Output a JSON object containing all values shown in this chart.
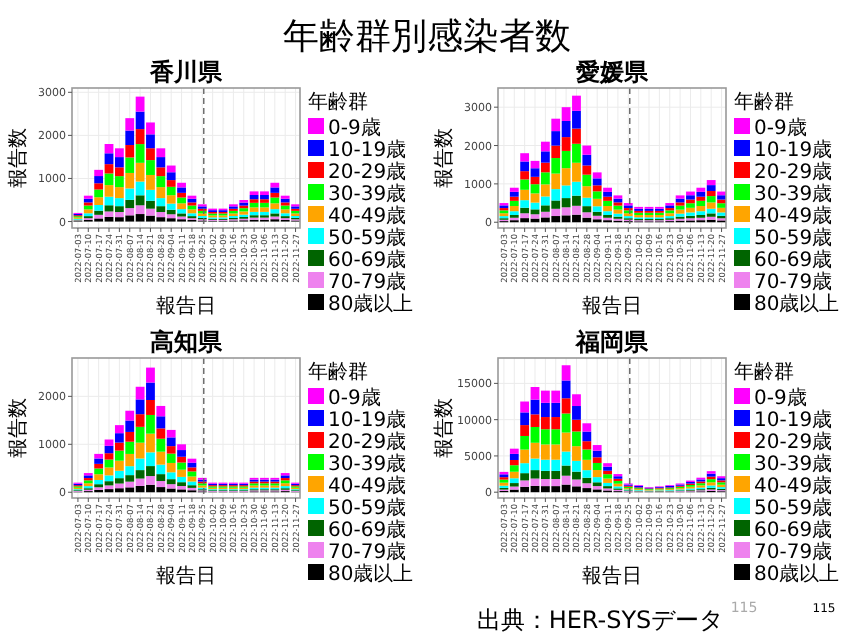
{
  "chart_data": [
    {
      "type": "other",
      "title": "年齢群別感染者数",
      "annotations": [
        "出典：HER-SYSデータ",
        "115",
        "115"
      ]
    },
    {
      "type": "bar",
      "stacked": true,
      "title": "香川県",
      "xlabel": "報告日",
      "ylabel": "報告数",
      "legend_title": "年齢群",
      "legend": "right",
      "grid": true,
      "x": [
        "2022-07-03",
        "2022-07-10",
        "2022-07-17",
        "2022-07-24",
        "2022-07-31",
        "2022-08-07",
        "2022-08-14",
        "2022-08-21",
        "2022-08-28",
        "2022-09-04",
        "2022-09-11",
        "2022-09-18",
        "2022-09-25",
        "2022-10-02",
        "2022-10-09",
        "2022-10-16",
        "2022-10-23",
        "2022-10-30",
        "2022-11-06",
        "2022-11-13",
        "2022-11-20",
        "2022-11-27"
      ],
      "xlim": [
        "2022-06-29",
        "2022-11-30"
      ],
      "xticks": [
        "2022-07-03",
        "2022-07-10",
        "2022-07-17",
        "2022-07-24",
        "2022-07-31",
        "2022-08-07",
        "2022-08-14",
        "2022-08-21",
        "2022-08-28",
        "2022-09-04",
        "2022-09-11",
        "2022-09-18",
        "2022-09-25",
        "2022-10-02",
        "2022-10-09",
        "2022-10-16",
        "2022-10-23",
        "2022-10-30",
        "2022-11-06",
        "2022-11-13",
        "2022-11-20",
        "2022-11-27"
      ],
      "ylim": [
        -150,
        3100
      ],
      "yticks": [
        0,
        1000,
        2000,
        3000
      ],
      "ref_lines": [
        {
          "axis": "x",
          "value": "2022-09-26",
          "line_style": "dashed",
          "color": "#666666"
        }
      ],
      "series": [
        {
          "name": "80歳以上",
          "color": "#000000",
          "values": [
            12,
            36,
            72,
            108,
            102,
            144,
            174,
            138,
            102,
            78,
            54,
            36,
            24,
            18,
            18,
            24,
            30,
            42,
            42,
            54,
            36,
            24
          ]
        },
        {
          "name": "70-79歳",
          "color": "#ee82ee",
          "values": [
            14,
            42,
            84,
            126,
            119,
            168,
            203,
            161,
            119,
            91,
            63,
            42,
            28,
            21,
            21,
            28,
            35,
            49,
            49,
            63,
            42,
            28
          ]
        },
        {
          "name": "60-69歳",
          "color": "#006400",
          "values": [
            16,
            48,
            96,
            144,
            136,
            192,
            232,
            184,
            136,
            104,
            72,
            48,
            32,
            24,
            24,
            32,
            40,
            56,
            56,
            72,
            48,
            32
          ]
        },
        {
          "name": "50-59歳",
          "color": "#00ffff",
          "values": [
            22,
            66,
            132,
            198,
            187,
            264,
            319,
            253,
            187,
            143,
            99,
            66,
            44,
            33,
            33,
            44,
            55,
            77,
            77,
            99,
            66,
            44
          ]
        },
        {
          "name": "40-49歳",
          "color": "#ffa500",
          "values": [
            30,
            90,
            180,
            270,
            255,
            360,
            435,
            345,
            255,
            195,
            135,
            90,
            60,
            45,
            45,
            60,
            75,
            105,
            105,
            135,
            90,
            60
          ]
        },
        {
          "name": "30-39歳",
          "color": "#00ff00",
          "values": [
            30,
            90,
            180,
            270,
            255,
            360,
            435,
            345,
            255,
            195,
            135,
            90,
            60,
            45,
            45,
            60,
            75,
            105,
            105,
            135,
            90,
            60
          ]
        },
        {
          "name": "20-29歳",
          "color": "#ff0000",
          "values": [
            24,
            72,
            144,
            216,
            204,
            288,
            348,
            276,
            204,
            156,
            108,
            72,
            48,
            36,
            36,
            48,
            60,
            84,
            84,
            108,
            72,
            48
          ]
        },
        {
          "name": "10-19歳",
          "color": "#0000ff",
          "values": [
            28,
            84,
            168,
            252,
            238,
            336,
            406,
            322,
            238,
            182,
            126,
            84,
            56,
            42,
            42,
            56,
            70,
            98,
            98,
            126,
            84,
            56
          ]
        },
        {
          "name": "0-9歳",
          "color": "#ff00ff",
          "values": [
            24,
            72,
            144,
            216,
            204,
            288,
            348,
            276,
            204,
            156,
            108,
            72,
            48,
            36,
            36,
            48,
            60,
            84,
            84,
            108,
            72,
            48
          ]
        }
      ]
    },
    {
      "type": "bar",
      "stacked": true,
      "title": "愛媛県",
      "xlabel": "報告日",
      "ylabel": "報告数",
      "legend_title": "年齢群",
      "legend": "right",
      "grid": true,
      "x": [
        "2022-07-03",
        "2022-07-10",
        "2022-07-17",
        "2022-07-24",
        "2022-07-31",
        "2022-08-07",
        "2022-08-14",
        "2022-08-21",
        "2022-08-28",
        "2022-09-04",
        "2022-09-11",
        "2022-09-18",
        "2022-09-25",
        "2022-10-02",
        "2022-10-09",
        "2022-10-16",
        "2022-10-23",
        "2022-10-30",
        "2022-11-06",
        "2022-11-13",
        "2022-11-20",
        "2022-11-27"
      ],
      "xlim": [
        "2022-06-29",
        "2022-11-30"
      ],
      "xticks": [
        "2022-07-03",
        "2022-07-10",
        "2022-07-17",
        "2022-07-24",
        "2022-07-31",
        "2022-08-07",
        "2022-08-14",
        "2022-08-21",
        "2022-08-28",
        "2022-09-04",
        "2022-09-11",
        "2022-09-18",
        "2022-09-25",
        "2022-10-02",
        "2022-10-09",
        "2022-10-16",
        "2022-10-23",
        "2022-10-30",
        "2022-11-06",
        "2022-11-13",
        "2022-11-20",
        "2022-11-27"
      ],
      "ylim": [
        -150,
        3500
      ],
      "yticks": [
        0,
        1000,
        2000,
        3000
      ],
      "ref_lines": [
        {
          "axis": "x",
          "value": "2022-09-26",
          "line_style": "dashed",
          "color": "#666666"
        }
      ],
      "series": [
        {
          "name": "80歳以上",
          "color": "#000000",
          "values": [
            30,
            54,
            108,
            96,
            126,
            162,
            180,
            198,
            120,
            78,
            54,
            42,
            30,
            24,
            24,
            24,
            30,
            42,
            48,
            54,
            66,
            48
          ]
        },
        {
          "name": "70-79歳",
          "color": "#ee82ee",
          "values": [
            35,
            63,
            126,
            112,
            147,
            189,
            210,
            231,
            140,
            91,
            63,
            49,
            35,
            28,
            28,
            28,
            35,
            49,
            56,
            63,
            77,
            56
          ]
        },
        {
          "name": "60-69歳",
          "color": "#006400",
          "values": [
            40,
            72,
            144,
            128,
            168,
            216,
            240,
            264,
            160,
            104,
            72,
            56,
            40,
            32,
            32,
            32,
            40,
            56,
            64,
            72,
            88,
            64
          ]
        },
        {
          "name": "50-59歳",
          "color": "#00ffff",
          "values": [
            55,
            99,
            198,
            176,
            231,
            297,
            330,
            363,
            220,
            143,
            99,
            77,
            55,
            44,
            44,
            44,
            55,
            77,
            88,
            99,
            121,
            88
          ]
        },
        {
          "name": "40-49歳",
          "color": "#ffa500",
          "values": [
            75,
            135,
            270,
            240,
            315,
            405,
            450,
            495,
            300,
            195,
            135,
            105,
            75,
            60,
            60,
            60,
            75,
            105,
            120,
            135,
            165,
            120
          ]
        },
        {
          "name": "30-39歳",
          "color": "#00ff00",
          "values": [
            75,
            135,
            270,
            240,
            315,
            405,
            450,
            495,
            300,
            195,
            135,
            105,
            75,
            60,
            60,
            60,
            75,
            105,
            120,
            135,
            165,
            120
          ]
        },
        {
          "name": "20-29歳",
          "color": "#ff0000",
          "values": [
            60,
            108,
            216,
            192,
            252,
            324,
            360,
            396,
            240,
            156,
            108,
            84,
            60,
            48,
            48,
            48,
            60,
            84,
            96,
            108,
            132,
            96
          ]
        },
        {
          "name": "10-19歳",
          "color": "#0000ff",
          "values": [
            70,
            126,
            252,
            224,
            294,
            378,
            420,
            462,
            280,
            182,
            126,
            98,
            70,
            56,
            56,
            56,
            70,
            98,
            112,
            126,
            154,
            112
          ]
        },
        {
          "name": "0-9歳",
          "color": "#ff00ff",
          "values": [
            60,
            108,
            216,
            192,
            252,
            324,
            360,
            396,
            240,
            156,
            108,
            84,
            60,
            48,
            48,
            48,
            60,
            84,
            96,
            108,
            132,
            96
          ]
        }
      ]
    },
    {
      "type": "bar",
      "stacked": true,
      "title": "高知県",
      "xlabel": "報告日",
      "ylabel": "報告数",
      "legend_title": "年齢群",
      "legend": "right",
      "grid": true,
      "x": [
        "2022-07-03",
        "2022-07-10",
        "2022-07-17",
        "2022-07-24",
        "2022-07-31",
        "2022-08-07",
        "2022-08-14",
        "2022-08-21",
        "2022-08-28",
        "2022-09-04",
        "2022-09-11",
        "2022-09-18",
        "2022-09-25",
        "2022-10-02",
        "2022-10-09",
        "2022-10-16",
        "2022-10-23",
        "2022-10-30",
        "2022-11-06",
        "2022-11-13",
        "2022-11-20",
        "2022-11-27"
      ],
      "xlim": [
        "2022-06-29",
        "2022-11-30"
      ],
      "xticks": [
        "2022-07-03",
        "2022-07-10",
        "2022-07-17",
        "2022-07-24",
        "2022-07-31",
        "2022-08-07",
        "2022-08-14",
        "2022-08-21",
        "2022-08-28",
        "2022-09-04",
        "2022-09-11",
        "2022-09-18",
        "2022-09-25",
        "2022-10-02",
        "2022-10-09",
        "2022-10-16",
        "2022-10-23",
        "2022-10-30",
        "2022-11-06",
        "2022-11-13",
        "2022-11-20",
        "2022-11-27"
      ],
      "ylim": [
        -120,
        2800
      ],
      "yticks": [
        0,
        1000,
        2000
      ],
      "ref_lines": [
        {
          "axis": "x",
          "value": "2022-09-26",
          "line_style": "dashed",
          "color": "#666666"
        }
      ],
      "series": [
        {
          "name": "80歳以上",
          "color": "#000000",
          "values": [
            12,
            24,
            48,
            66,
            84,
            102,
            132,
            156,
            108,
            78,
            60,
            42,
            18,
            12,
            12,
            12,
            12,
            18,
            18,
            18,
            24,
            12
          ]
        },
        {
          "name": "70-79歳",
          "color": "#ee82ee",
          "values": [
            14,
            28,
            56,
            77,
            98,
            119,
            154,
            182,
            126,
            91,
            70,
            49,
            21,
            14,
            14,
            14,
            14,
            21,
            21,
            21,
            28,
            14
          ]
        },
        {
          "name": "60-69歳",
          "color": "#006400",
          "values": [
            16,
            32,
            64,
            88,
            112,
            136,
            176,
            208,
            144,
            104,
            80,
            56,
            24,
            16,
            16,
            16,
            16,
            24,
            24,
            24,
            32,
            16
          ]
        },
        {
          "name": "50-59歳",
          "color": "#00ffff",
          "values": [
            22,
            44,
            88,
            121,
            154,
            187,
            242,
            286,
            198,
            143,
            110,
            77,
            33,
            22,
            22,
            22,
            22,
            33,
            33,
            33,
            44,
            22
          ]
        },
        {
          "name": "40-49歳",
          "color": "#ffa500",
          "values": [
            30,
            60,
            120,
            165,
            210,
            255,
            330,
            390,
            270,
            195,
            150,
            105,
            45,
            30,
            30,
            30,
            30,
            45,
            45,
            45,
            60,
            30
          ]
        },
        {
          "name": "30-39歳",
          "color": "#00ff00",
          "values": [
            30,
            60,
            120,
            165,
            210,
            255,
            330,
            390,
            270,
            195,
            150,
            105,
            45,
            30,
            30,
            30,
            30,
            45,
            45,
            45,
            60,
            30
          ]
        },
        {
          "name": "20-29歳",
          "color": "#ff0000",
          "values": [
            24,
            48,
            96,
            132,
            168,
            204,
            264,
            312,
            216,
            156,
            120,
            84,
            36,
            24,
            24,
            24,
            24,
            36,
            36,
            36,
            48,
            24
          ]
        },
        {
          "name": "10-19歳",
          "color": "#0000ff",
          "values": [
            28,
            56,
            112,
            154,
            196,
            238,
            308,
            364,
            252,
            182,
            140,
            98,
            42,
            28,
            28,
            28,
            28,
            42,
            42,
            42,
            56,
            28
          ]
        },
        {
          "name": "0-9歳",
          "color": "#ff00ff",
          "values": [
            24,
            48,
            96,
            132,
            168,
            204,
            264,
            312,
            216,
            156,
            120,
            84,
            36,
            24,
            24,
            24,
            24,
            36,
            36,
            36,
            48,
            24
          ]
        }
      ]
    },
    {
      "type": "bar",
      "stacked": true,
      "title": "福岡県",
      "xlabel": "報告日",
      "ylabel": "報告数",
      "legend_title": "年齢群",
      "legend": "right",
      "grid": true,
      "x": [
        "2022-07-03",
        "2022-07-10",
        "2022-07-17",
        "2022-07-24",
        "2022-07-31",
        "2022-08-07",
        "2022-08-14",
        "2022-08-21",
        "2022-08-28",
        "2022-09-04",
        "2022-09-11",
        "2022-09-18",
        "2022-09-25",
        "2022-10-02",
        "2022-10-09",
        "2022-10-16",
        "2022-10-23",
        "2022-10-30",
        "2022-11-06",
        "2022-11-13",
        "2022-11-20",
        "2022-11-27"
      ],
      "xlim": [
        "2022-06-29",
        "2022-11-30"
      ],
      "xticks": [
        "2022-07-03",
        "2022-07-10",
        "2022-07-17",
        "2022-07-24",
        "2022-07-31",
        "2022-08-07",
        "2022-08-14",
        "2022-08-21",
        "2022-08-28",
        "2022-09-04",
        "2022-09-11",
        "2022-09-18",
        "2022-09-25",
        "2022-10-02",
        "2022-10-09",
        "2022-10-16",
        "2022-10-23",
        "2022-10-30",
        "2022-11-06",
        "2022-11-13",
        "2022-11-20",
        "2022-11-27"
      ],
      "ylim": [
        -800,
        18500
      ],
      "yticks": [
        0,
        5000,
        10000,
        15000
      ],
      "ref_lines": [
        {
          "axis": "x",
          "value": "2022-09-26",
          "line_style": "dashed",
          "color": "#666666"
        }
      ],
      "series": [
        {
          "name": "80歳以上",
          "color": "#000000",
          "values": [
            168,
            360,
            750,
            870,
            840,
            840,
            1050,
            810,
            570,
            390,
            240,
            150,
            72,
            54,
            42,
            48,
            54,
            72,
            96,
            120,
            174,
            132
          ]
        },
        {
          "name": "70-79歳",
          "color": "#ee82ee",
          "values": [
            196,
            420,
            875,
            1015,
            980,
            980,
            1225,
            945,
            665,
            455,
            280,
            175,
            84,
            63,
            49,
            56,
            63,
            84,
            112,
            140,
            203,
            154
          ]
        },
        {
          "name": "60-69歳",
          "color": "#006400",
          "values": [
            224,
            480,
            1000,
            1160,
            1120,
            1120,
            1400,
            1080,
            760,
            520,
            320,
            200,
            96,
            72,
            56,
            64,
            72,
            96,
            128,
            160,
            232,
            176
          ]
        },
        {
          "name": "50-59歳",
          "color": "#00ffff",
          "values": [
            308,
            660,
            1375,
            1595,
            1540,
            1540,
            1925,
            1485,
            1045,
            715,
            440,
            275,
            132,
            99,
            77,
            88,
            99,
            132,
            176,
            220,
            319,
            242
          ]
        },
        {
          "name": "40-49歳",
          "color": "#ffa500",
          "values": [
            420,
            900,
            1875,
            2175,
            2100,
            2100,
            2625,
            2025,
            1425,
            975,
            600,
            375,
            180,
            135,
            105,
            120,
            135,
            180,
            240,
            300,
            435,
            330
          ]
        },
        {
          "name": "30-39歳",
          "color": "#00ff00",
          "values": [
            420,
            900,
            1875,
            2175,
            2100,
            2100,
            2625,
            2025,
            1425,
            975,
            600,
            375,
            180,
            135,
            105,
            120,
            135,
            180,
            240,
            300,
            435,
            330
          ]
        },
        {
          "name": "20-29歳",
          "color": "#ff0000",
          "values": [
            336,
            720,
            1500,
            1740,
            1680,
            1680,
            2100,
            1620,
            1140,
            780,
            480,
            300,
            144,
            108,
            84,
            96,
            108,
            144,
            192,
            240,
            348,
            264
          ]
        },
        {
          "name": "10-19歳",
          "color": "#0000ff",
          "values": [
            392,
            840,
            1750,
            2030,
            1960,
            1960,
            2450,
            1890,
            1330,
            910,
            560,
            350,
            168,
            200,
            98,
            112,
            200,
            168,
            224,
            280,
            406,
            308
          ]
        },
        {
          "name": "0-9歳",
          "color": "#ff00ff",
          "values": [
            336,
            720,
            1500,
            1740,
            1680,
            1680,
            2100,
            1620,
            1140,
            780,
            480,
            300,
            144,
            108,
            84,
            96,
            108,
            144,
            192,
            240,
            348,
            264
          ]
        }
      ]
    }
  ]
}
